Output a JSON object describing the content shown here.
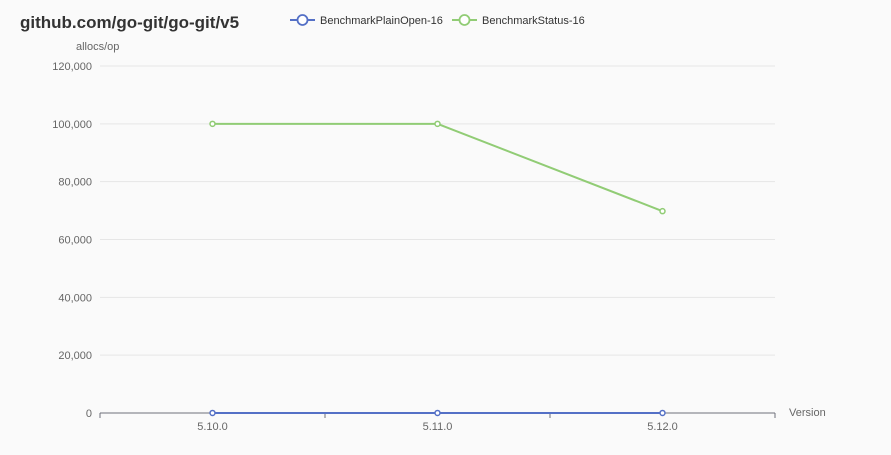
{
  "chart_data": {
    "type": "line",
    "title": "github.com/go-git/go-git/v5",
    "xlabel": "Version",
    "ylabel": "allocs/op",
    "categories": [
      "5.10.0",
      "5.11.0",
      "5.12.0"
    ],
    "ylim": [
      0,
      120000
    ],
    "yticks": [
      "0",
      "20,000",
      "40,000",
      "60,000",
      "80,000",
      "100,000",
      "120,000"
    ],
    "grid": true,
    "legend_position": "top",
    "series": [
      {
        "name": "BenchmarkPlainOpen-16",
        "color": "#5470c6",
        "values": [
          6,
          6,
          6
        ]
      },
      {
        "name": "BenchmarkStatus-16",
        "color": "#91cc75",
        "values": [
          100000,
          100000,
          69800
        ]
      }
    ]
  }
}
